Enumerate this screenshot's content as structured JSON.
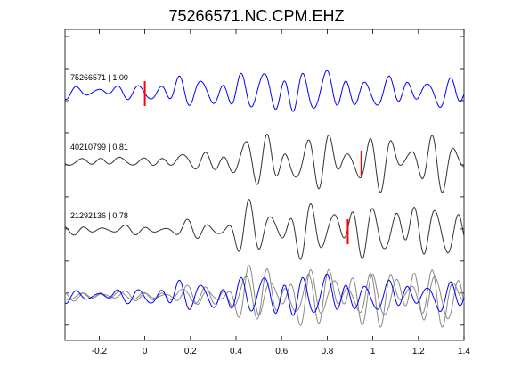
{
  "chart_data": {
    "type": "line",
    "title": "75266571.NC.CPM.EHZ",
    "xlabel": "",
    "ylabel": "",
    "xlim": [
      -0.35,
      1.4
    ],
    "x_ticks": [
      -0.2,
      0,
      0.2,
      0.4,
      0.6,
      0.8,
      1,
      1.2,
      1.4
    ],
    "x_tick_labels": [
      "-0.2",
      "0",
      "0.2",
      "0.4",
      "0.6",
      "0.8",
      "1",
      "1.2",
      "1.4"
    ],
    "grid": false,
    "colors": {
      "reference": "#0000ff",
      "other": "#333333",
      "overlay_other": "#888888",
      "pick": "#ff0000"
    },
    "traces": [
      {
        "label": "75266571 | 1.00",
        "color": "#0000ff",
        "pick_time": 0.0,
        "onset": 0.0,
        "seed": 1
      },
      {
        "label": "40210799 | 0.81",
        "color": "#333333",
        "pick_time": 0.95,
        "onset": 0.39,
        "seed": 2
      },
      {
        "label": "21292136 | 0.78",
        "color": "#333333",
        "pick_time": 0.89,
        "onset": 0.38,
        "seed": 3
      }
    ],
    "overlay": {
      "note": "stack of all traces aligned"
    }
  }
}
